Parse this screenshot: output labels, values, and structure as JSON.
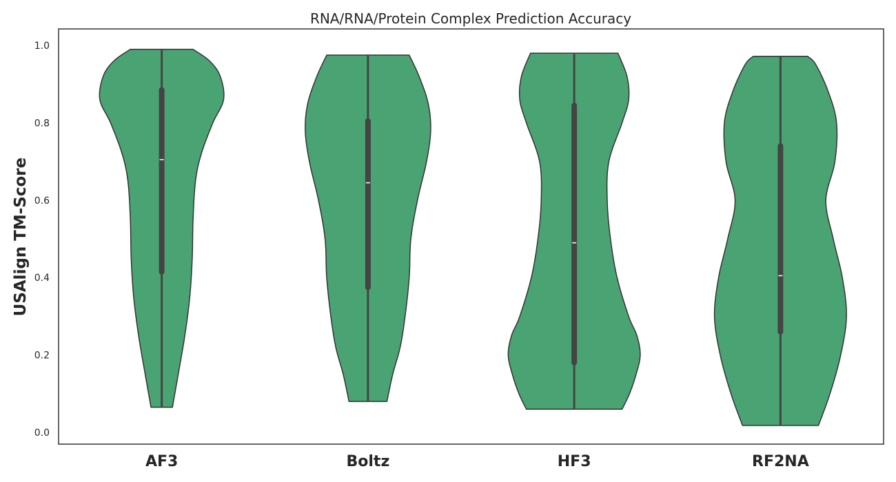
{
  "chart_data": {
    "type": "violin",
    "title": "RNA/RNA/Protein Complex Prediction Accuracy",
    "xlabel": "",
    "ylabel": "USAlign TM-Score",
    "ylim": [
      -0.03,
      1.04
    ],
    "yticks": [
      "0.0",
      "0.2",
      "0.4",
      "0.6",
      "0.8",
      "1.0"
    ],
    "grid": false,
    "violin_color": "#4aa372",
    "box_color": "#444444",
    "categories": [
      "AF3",
      "Boltz",
      "HF3",
      "RF2NA"
    ],
    "series": [
      {
        "category": "AF3",
        "min": 0.065,
        "max": 0.99,
        "q1": 0.415,
        "median": 0.705,
        "q3": 0.885,
        "density": [
          [
            0.065,
            0.13
          ],
          [
            0.15,
            0.2
          ],
          [
            0.25,
            0.28
          ],
          [
            0.35,
            0.34
          ],
          [
            0.45,
            0.37
          ],
          [
            0.55,
            0.38
          ],
          [
            0.65,
            0.41
          ],
          [
            0.72,
            0.48
          ],
          [
            0.8,
            0.62
          ],
          [
            0.86,
            0.75
          ],
          [
            0.92,
            0.71
          ],
          [
            0.96,
            0.58
          ],
          [
            0.99,
            0.38
          ]
        ]
      },
      {
        "category": "Boltz",
        "min": 0.08,
        "max": 0.975,
        "q1": 0.375,
        "median": 0.645,
        "q3": 0.805,
        "density": [
          [
            0.08,
            0.23
          ],
          [
            0.15,
            0.3
          ],
          [
            0.22,
            0.39
          ],
          [
            0.3,
            0.45
          ],
          [
            0.4,
            0.5
          ],
          [
            0.5,
            0.52
          ],
          [
            0.6,
            0.6
          ],
          [
            0.7,
            0.71
          ],
          [
            0.78,
            0.76
          ],
          [
            0.85,
            0.73
          ],
          [
            0.92,
            0.62
          ],
          [
            0.975,
            0.5
          ]
        ]
      },
      {
        "category": "HF3",
        "min": 0.06,
        "max": 0.98,
        "q1": 0.18,
        "median": 0.49,
        "q3": 0.845,
        "density": [
          [
            0.06,
            0.58
          ],
          [
            0.1,
            0.67
          ],
          [
            0.15,
            0.75
          ],
          [
            0.2,
            0.8
          ],
          [
            0.25,
            0.76
          ],
          [
            0.3,
            0.66
          ],
          [
            0.4,
            0.52
          ],
          [
            0.5,
            0.44
          ],
          [
            0.6,
            0.4
          ],
          [
            0.7,
            0.42
          ],
          [
            0.8,
            0.58
          ],
          [
            0.86,
            0.66
          ],
          [
            0.92,
            0.64
          ],
          [
            0.98,
            0.53
          ]
        ]
      },
      {
        "category": "RF2NA",
        "min": 0.018,
        "max": 0.972,
        "q1": 0.26,
        "median": 0.405,
        "q3": 0.74,
        "density": [
          [
            0.018,
            0.46
          ],
          [
            0.1,
            0.6
          ],
          [
            0.2,
            0.73
          ],
          [
            0.3,
            0.8
          ],
          [
            0.4,
            0.75
          ],
          [
            0.5,
            0.64
          ],
          [
            0.6,
            0.55
          ],
          [
            0.7,
            0.66
          ],
          [
            0.8,
            0.68
          ],
          [
            0.88,
            0.58
          ],
          [
            0.95,
            0.43
          ],
          [
            0.972,
            0.33
          ]
        ]
      }
    ]
  }
}
